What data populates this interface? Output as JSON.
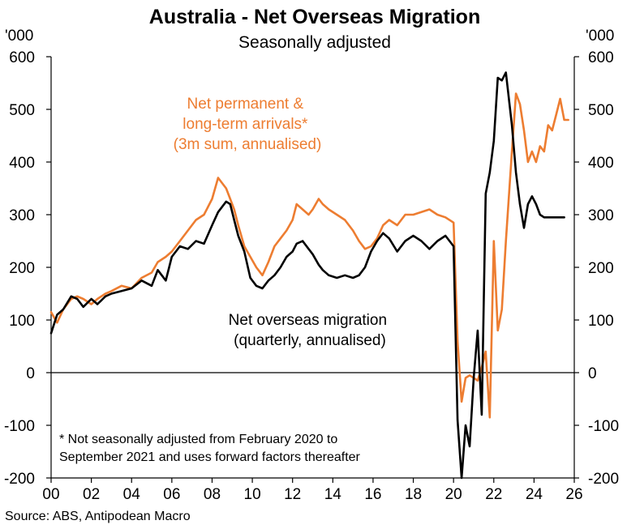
{
  "chart_data": {
    "type": "line",
    "title": "Australia - Net Overseas Migration",
    "subtitle": "Seasonally adjusted",
    "ylabel_left": "'000",
    "ylabel_right": "'000",
    "xlabel": "",
    "xlim": [
      2000,
      2026
    ],
    "ylim": [
      -200,
      600
    ],
    "x_ticks": [
      2000,
      2002,
      2004,
      2006,
      2008,
      2010,
      2012,
      2014,
      2016,
      2018,
      2020,
      2022,
      2024,
      2026
    ],
    "x_tick_labels": [
      "00",
      "02",
      "04",
      "06",
      "08",
      "10",
      "12",
      "14",
      "16",
      "18",
      "20",
      "22",
      "24",
      "26"
    ],
    "y_ticks": [
      -200,
      -100,
      0,
      100,
      200,
      300,
      400,
      500,
      600
    ],
    "y_tick_labels": [
      "-200",
      "-100",
      "0",
      "100",
      "200",
      "300",
      "400",
      "500",
      "600"
    ],
    "series": [
      {
        "name": "Net permanent & long-term arrivals* (3m sum, annualised)",
        "color": "#ED7D31",
        "x": [
          2000.0,
          2000.3,
          2000.6,
          2001.0,
          2001.3,
          2001.6,
          2002.0,
          2002.3,
          2002.7,
          2003.0,
          2003.5,
          2004.0,
          2004.5,
          2005.0,
          2005.3,
          2005.7,
          2006.0,
          2006.4,
          2006.8,
          2007.2,
          2007.6,
          2008.0,
          2008.3,
          2008.7,
          2008.9,
          2009.1,
          2009.3,
          2009.6,
          2009.9,
          2010.2,
          2010.5,
          2010.8,
          2011.1,
          2011.4,
          2011.7,
          2012.0,
          2012.2,
          2012.5,
          2012.8,
          2013.0,
          2013.3,
          2013.5,
          2013.8,
          2014.2,
          2014.6,
          2015.0,
          2015.3,
          2015.6,
          2015.9,
          2016.2,
          2016.5,
          2016.8,
          2017.2,
          2017.6,
          2018.0,
          2018.4,
          2018.8,
          2019.2,
          2019.6,
          2020.0,
          2020.2,
          2020.4,
          2020.6,
          2020.8,
          2021.0,
          2021.2,
          2021.4,
          2021.6,
          2021.8,
          2022.0,
          2022.2,
          2022.4,
          2022.6,
          2022.9,
          2023.1,
          2023.3,
          2023.5,
          2023.7,
          2023.9,
          2024.1,
          2024.3,
          2024.5,
          2024.7,
          2024.9,
          2025.1,
          2025.3,
          2025.5,
          2025.7
        ],
        "y": [
          115,
          95,
          120,
          140,
          145,
          140,
          130,
          140,
          150,
          155,
          165,
          160,
          180,
          190,
          210,
          220,
          230,
          250,
          270,
          290,
          300,
          330,
          370,
          350,
          330,
          310,
          280,
          240,
          220,
          200,
          185,
          210,
          240,
          255,
          270,
          290,
          320,
          310,
          300,
          310,
          330,
          320,
          310,
          300,
          290,
          270,
          250,
          235,
          240,
          255,
          280,
          290,
          280,
          300,
          300,
          305,
          310,
          300,
          295,
          285,
          60,
          -55,
          -10,
          -5,
          -10,
          -15,
          10,
          40,
          -85,
          250,
          80,
          120,
          250,
          420,
          530,
          510,
          460,
          400,
          420,
          400,
          430,
          420,
          470,
          460,
          490,
          520,
          480,
          480
        ]
      },
      {
        "name": "Net overseas migration (quarterly, annualised)",
        "color": "#000000",
        "x": [
          2000.0,
          2000.3,
          2000.6,
          2001.0,
          2001.3,
          2001.6,
          2002.0,
          2002.3,
          2002.7,
          2003.0,
          2003.5,
          2004.0,
          2004.5,
          2005.0,
          2005.3,
          2005.7,
          2006.0,
          2006.4,
          2006.8,
          2007.2,
          2007.6,
          2008.0,
          2008.3,
          2008.7,
          2008.9,
          2009.1,
          2009.3,
          2009.6,
          2009.9,
          2010.2,
          2010.5,
          2010.8,
          2011.1,
          2011.4,
          2011.7,
          2012.0,
          2012.2,
          2012.5,
          2012.8,
          2013.0,
          2013.3,
          2013.5,
          2013.8,
          2014.2,
          2014.6,
          2015.0,
          2015.3,
          2015.6,
          2015.9,
          2016.2,
          2016.5,
          2016.8,
          2017.2,
          2017.6,
          2018.0,
          2018.4,
          2018.8,
          2019.2,
          2019.6,
          2020.0,
          2020.2,
          2020.4,
          2020.6,
          2020.8,
          2021.0,
          2021.2,
          2021.4,
          2021.6,
          2021.8,
          2022.0,
          2022.2,
          2022.4,
          2022.6,
          2022.9,
          2023.1,
          2023.3,
          2023.5,
          2023.7,
          2023.9,
          2024.1,
          2024.3,
          2024.5,
          2024.7,
          2024.9,
          2025.1,
          2025.3,
          2025.5
        ],
        "y": [
          75,
          110,
          120,
          145,
          140,
          125,
          140,
          130,
          145,
          150,
          155,
          160,
          175,
          165,
          195,
          175,
          220,
          240,
          235,
          250,
          245,
          280,
          305,
          325,
          320,
          290,
          260,
          230,
          180,
          165,
          160,
          175,
          185,
          200,
          220,
          230,
          245,
          250,
          235,
          225,
          205,
          195,
          185,
          180,
          185,
          180,
          185,
          200,
          230,
          250,
          265,
          255,
          230,
          250,
          260,
          250,
          235,
          250,
          260,
          240,
          -90,
          -200,
          -100,
          -140,
          -10,
          80,
          -80,
          340,
          380,
          440,
          560,
          555,
          570,
          470,
          380,
          320,
          275,
          320,
          335,
          320,
          300,
          295,
          295,
          295,
          295,
          295,
          295
        ]
      }
    ],
    "annotations": {
      "orange_label": [
        "Net permanent &",
        "long-term arrivals*",
        "(3m sum, annualised)"
      ],
      "black_label": [
        "Net overseas migration",
        "(quarterly, annualised)"
      ],
      "footnote": [
        "* Not seasonally adjusted from February 2020 to",
        "September 2021 and uses forward factors thereafter"
      ]
    },
    "source": "Source: ABS, Antipodean Macro"
  }
}
